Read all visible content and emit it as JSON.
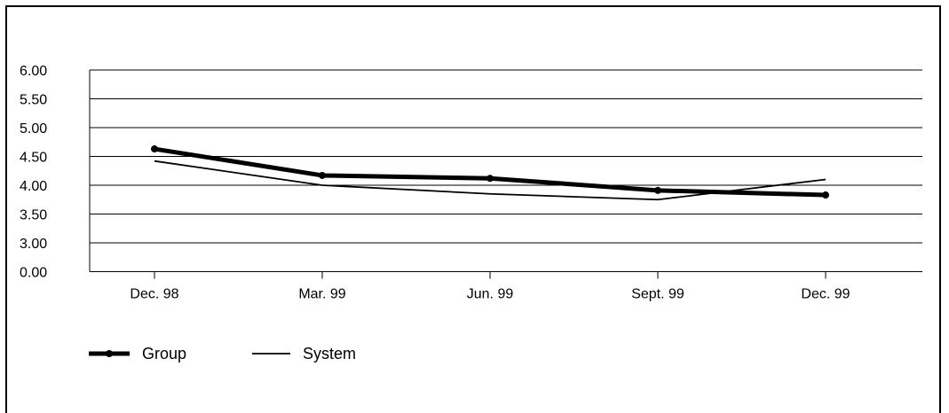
{
  "chart_data": {
    "type": "line",
    "categories": [
      "Dec. 98",
      "Mar. 99",
      "Jun. 99",
      "Sept. 99",
      "Dec. 99"
    ],
    "y_ticks": [
      "0.00",
      "3.00",
      "3.50",
      "4.00",
      "4.50",
      "5.00",
      "5.50",
      "6.00"
    ],
    "axis_note": "broken y-axis: tick 0.00 sits one step below 3.00",
    "grid": true,
    "legend_position": "bottom-left",
    "series": [
      {
        "name": "Group",
        "values": [
          4.63,
          4.17,
          4.12,
          3.91,
          3.83
        ],
        "color": "#000000",
        "style": "thick-with-markers"
      },
      {
        "name": "System",
        "values": [
          4.42,
          4.0,
          3.85,
          3.75,
          4.1
        ],
        "color": "#000000",
        "style": "thin"
      }
    ]
  }
}
